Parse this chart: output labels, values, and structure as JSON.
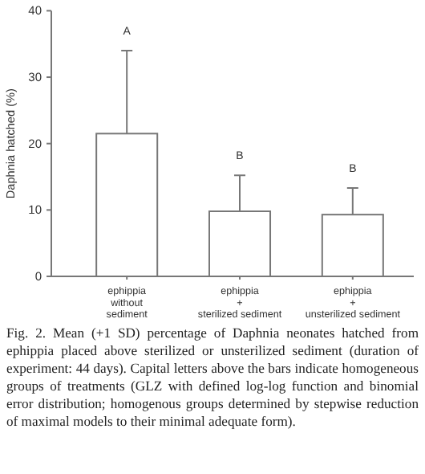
{
  "chart_data": {
    "type": "bar",
    "categories": [
      "ephippia\nwithout\nsediment",
      "ephippia\n+\nsterilized sediment",
      "ephippia\n+\nunsterilized sediment"
    ],
    "values": [
      21.5,
      9.8,
      9.3
    ],
    "errors": [
      [
        21.5,
        34.0
      ],
      [
        9.8,
        15.2
      ],
      [
        9.3,
        13.3
      ]
    ],
    "color": "#ffffff",
    "ylabel": "Daphnia hatched (%)",
    "ylim": [
      0,
      40
    ],
    "yticks": [
      0,
      10,
      20,
      30,
      40
    ],
    "grid": false,
    "annotations": [
      "A",
      "B",
      "B",
      "Fig. 2. Mean (+1 SD) percentage of Daphnia neonates hatched from ephippia placed above sterilized or unsterilized sediment (duration of experiment: 44 days). Capital letters above the bars indicate homogeneous groups of treatments (GLZ with defined log-log function and binomial error distribution; homogenous groups determined by stepwise reduction of maximal models to their minimal adequate form)."
    ]
  }
}
